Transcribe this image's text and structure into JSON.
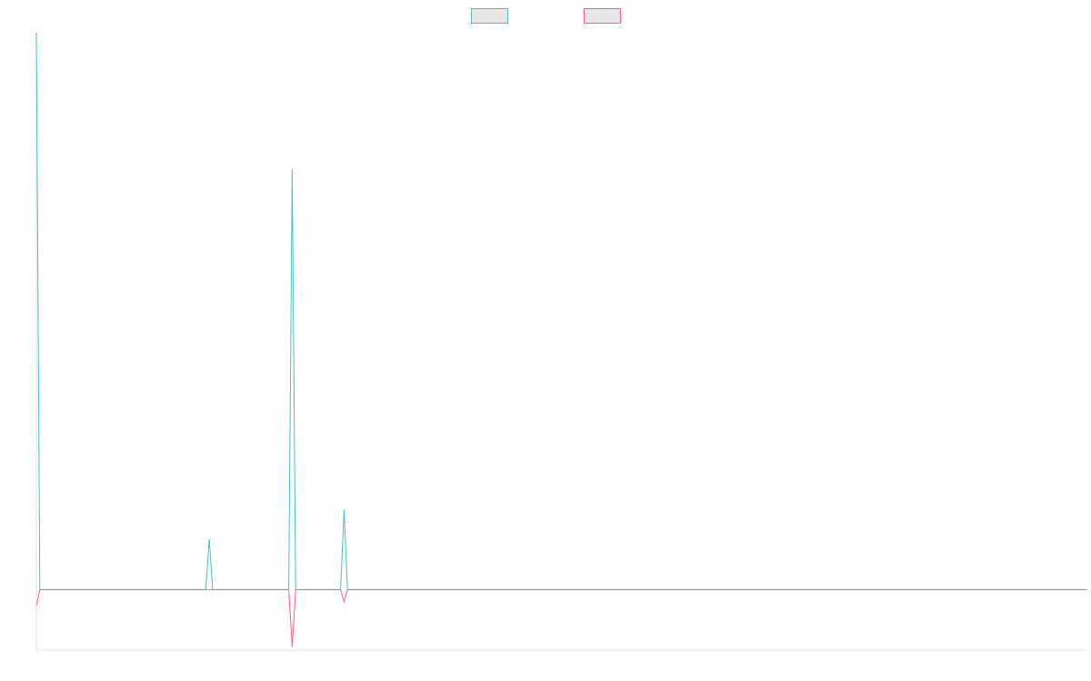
{
  "chart_data": {
    "type": "line",
    "title": "",
    "xlabel": "",
    "ylabel": "",
    "x_count": 305,
    "grid": false,
    "legend": {
      "placement": "top-center",
      "entries": [
        {
          "name": "",
          "color": "#4bc0c0",
          "fill": "#e6e6e6"
        },
        {
          "name": "",
          "color": "#ff6384",
          "fill": "#e6e6e6"
        }
      ]
    },
    "ylim": [
      -100,
      920
    ],
    "series": [
      {
        "name": "",
        "color": "#4bc0c0",
        "baseline": 0,
        "points": [
          {
            "x": 0,
            "y": 920
          },
          {
            "x": 1,
            "y": 0
          },
          {
            "x": 49,
            "y": 0
          },
          {
            "x": 50,
            "y": 83
          },
          {
            "x": 51,
            "y": 0
          },
          {
            "x": 73,
            "y": 0
          },
          {
            "x": 74,
            "y": 695
          },
          {
            "x": 75,
            "y": 0
          },
          {
            "x": 88,
            "y": 0
          },
          {
            "x": 89,
            "y": 132
          },
          {
            "x": 90,
            "y": 0
          },
          {
            "x": 304,
            "y": 0
          }
        ]
      },
      {
        "name": "",
        "color": "#ff6384",
        "baseline": 0,
        "points": [
          {
            "x": 0,
            "y": -27
          },
          {
            "x": 1,
            "y": 0
          },
          {
            "x": 73,
            "y": 0
          },
          {
            "x": 74,
            "y": -95
          },
          {
            "x": 75,
            "y": 0
          },
          {
            "x": 88,
            "y": 0
          },
          {
            "x": 89,
            "y": -20
          },
          {
            "x": 90,
            "y": 0
          },
          {
            "x": 304,
            "y": 0
          }
        ]
      }
    ]
  }
}
